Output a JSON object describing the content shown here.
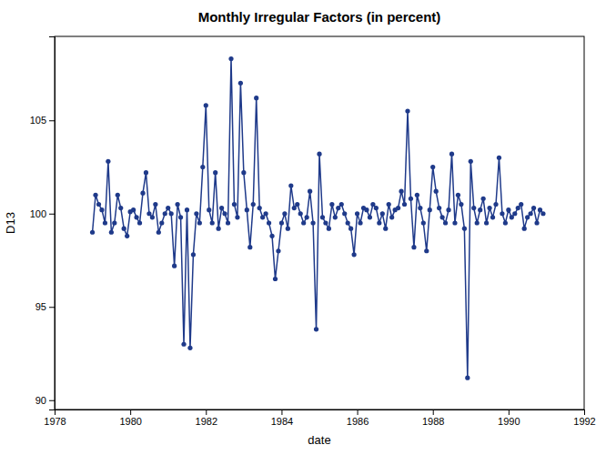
{
  "chart_data": {
    "type": "line",
    "title": "Monthly Irregular Factors (in percent)",
    "xlabel": "date",
    "ylabel": "D13",
    "xlim": [
      1978,
      1992
    ],
    "ylim": [
      89.5,
      109.5
    ],
    "xticks": [
      1978,
      1980,
      1982,
      1984,
      1986,
      1988,
      1990,
      1992
    ],
    "yticks": [
      90,
      95,
      100,
      105
    ],
    "color": "#1F3A8A",
    "marker": "circle",
    "grid": false,
    "x": [
      1979,
      1979.0833333333333,
      1979.1666666666667,
      1979.25,
      1979.3333333333333,
      1979.4166666666667,
      1979.5,
      1979.5833333333333,
      1979.6666666666667,
      1979.75,
      1979.8333333333333,
      1979.9166666666667,
      1980,
      1980.0833333333333,
      1980.1666666666667,
      1980.25,
      1980.3333333333333,
      1980.4166666666667,
      1980.5,
      1980.5833333333333,
      1980.6666666666667,
      1980.75,
      1980.8333333333333,
      1980.9166666666667,
      1981,
      1981.0833333333333,
      1981.1666666666667,
      1981.25,
      1981.3333333333333,
      1981.4166666666667,
      1981.5,
      1981.5833333333333,
      1981.6666666666667,
      1981.75,
      1981.8333333333333,
      1981.9166666666667,
      1982,
      1982.0833333333333,
      1982.1666666666667,
      1982.25,
      1982.3333333333333,
      1982.4166666666667,
      1982.5,
      1982.5833333333333,
      1982.6666666666667,
      1982.75,
      1982.8333333333333,
      1982.9166666666667,
      1983,
      1983.0833333333333,
      1983.1666666666667,
      1983.25,
      1983.3333333333333,
      1983.4166666666667,
      1983.5,
      1983.5833333333333,
      1983.6666666666667,
      1983.75,
      1983.8333333333333,
      1983.9166666666667,
      1984,
      1984.0833333333333,
      1984.1666666666667,
      1984.25,
      1984.3333333333333,
      1984.4166666666667,
      1984.5,
      1984.5833333333333,
      1984.6666666666667,
      1984.75,
      1984.8333333333333,
      1984.9166666666667,
      1985,
      1985.0833333333333,
      1985.1666666666667,
      1985.25,
      1985.3333333333333,
      1985.4166666666667,
      1985.5,
      1985.5833333333333,
      1985.6666666666667,
      1985.75,
      1985.8333333333333,
      1985.9166666666667,
      1986,
      1986.0833333333333,
      1986.1666666666667,
      1986.25,
      1986.3333333333333,
      1986.4166666666667,
      1986.5,
      1986.5833333333333,
      1986.6666666666667,
      1986.75,
      1986.8333333333333,
      1986.9166666666667,
      1987,
      1987.0833333333333,
      1987.1666666666667,
      1987.25,
      1987.3333333333333,
      1987.4166666666667,
      1987.5,
      1987.5833333333333,
      1987.6666666666667,
      1987.75,
      1987.8333333333333,
      1987.9166666666667,
      1988,
      1988.0833333333333,
      1988.1666666666667,
      1988.25,
      1988.3333333333333,
      1988.4166666666667,
      1988.5,
      1988.5833333333333,
      1988.6666666666667,
      1988.75,
      1988.8333333333333,
      1988.9166666666667,
      1989,
      1989.0833333333333,
      1989.1666666666667,
      1989.25,
      1989.3333333333333,
      1989.4166666666667,
      1989.5,
      1989.5833333333333,
      1989.6666666666667,
      1989.75,
      1989.8333333333333,
      1989.9166666666667,
      1990,
      1990.0833333333333,
      1990.1666666666667,
      1990.25,
      1990.3333333333333,
      1990.4166666666667,
      1990.5,
      1990.5833333333333,
      1990.6666666666667,
      1990.75,
      1990.8333333333333,
      1990.9166666666667
    ],
    "values": [
      99.0,
      101.0,
      100.5,
      100.2,
      99.5,
      102.8,
      99.0,
      99.5,
      101.0,
      100.3,
      99.2,
      98.8,
      100.1,
      100.2,
      99.8,
      99.5,
      101.1,
      102.2,
      100.0,
      99.8,
      100.5,
      99.0,
      99.5,
      100.0,
      100.3,
      100.0,
      97.2,
      100.5,
      99.8,
      93.0,
      100.2,
      92.8,
      97.8,
      100.0,
      99.5,
      102.5,
      105.8,
      100.2,
      99.5,
      102.2,
      99.2,
      100.3,
      100.0,
      99.5,
      108.3,
      100.5,
      99.8,
      107.0,
      102.2,
      100.2,
      98.2,
      100.5,
      106.2,
      100.3,
      99.8,
      100.0,
      99.5,
      98.8,
      96.5,
      98.0,
      99.5,
      100.0,
      99.2,
      101.5,
      100.3,
      100.5,
      100.0,
      99.5,
      99.8,
      101.2,
      99.5,
      93.8,
      103.2,
      99.8,
      99.5,
      99.2,
      100.5,
      99.8,
      100.3,
      100.5,
      100.0,
      99.5,
      99.2,
      97.8,
      100.0,
      99.5,
      100.3,
      100.2,
      99.8,
      100.5,
      100.3,
      99.5,
      100.0,
      99.2,
      100.5,
      99.8,
      100.2,
      100.3,
      101.2,
      100.5,
      105.5,
      100.8,
      98.2,
      101.0,
      100.3,
      99.5,
      98.0,
      100.2,
      102.5,
      101.2,
      100.3,
      99.8,
      99.5,
      100.2,
      103.2,
      99.5,
      101.0,
      100.5,
      99.2,
      91.2,
      102.8,
      100.3,
      99.5,
      100.2,
      100.8,
      99.5,
      100.3,
      99.8,
      100.5,
      103.0,
      100.0,
      99.5,
      100.2,
      99.8,
      100.0,
      100.3,
      100.5,
      99.2,
      99.8,
      100.0,
      100.3,
      99.5,
      100.2,
      100.0
    ]
  }
}
